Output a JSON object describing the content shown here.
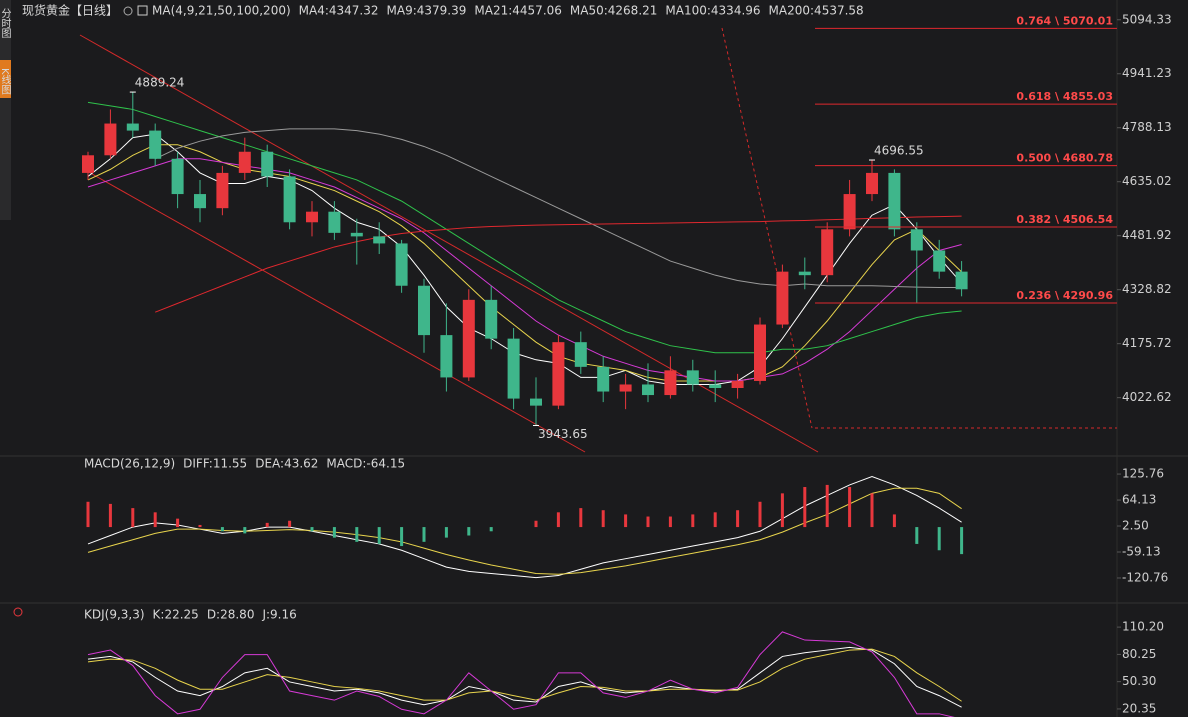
{
  "sidebar": [
    "分时图",
    "K线图"
  ],
  "chart_data": [
    {
      "type": "candlestick",
      "title": "现货黄金",
      "subtitle": "【日线】",
      "indicator": "MA(4,9,21,50,100,200)",
      "up_color": "#e8373d",
      "down_color": "#3fb68b",
      "open": [
        4660,
        4710,
        4800,
        4780,
        4700,
        4600,
        4560,
        4660,
        4720,
        4650,
        4520,
        4550,
        4490,
        4480,
        4460,
        4340,
        4200,
        4080,
        4300,
        4190,
        4020,
        4000,
        4180,
        4110,
        4040,
        4060,
        4030,
        4100,
        4060,
        4050,
        4070,
        4230,
        4380,
        4370,
        4500,
        4600,
        4660,
        4500,
        4440,
        4380
      ],
      "high": [
        4720,
        4840,
        4889.24,
        4800,
        4720,
        4640,
        4680,
        4760,
        4740,
        4670,
        4580,
        4580,
        4530,
        4520,
        4470,
        4360,
        4290,
        4330,
        4340,
        4220,
        4080,
        4200,
        4210,
        4140,
        4090,
        4120,
        4140,
        4130,
        4100,
        4090,
        4250,
        4400,
        4420,
        4520,
        4640,
        4696.55,
        4670,
        4520,
        4470,
        4410
      ],
      "low": [
        4640,
        4700,
        4760,
        4680,
        4560,
        4520,
        4540,
        4640,
        4620,
        4500,
        4480,
        4470,
        4400,
        4430,
        4320,
        4150,
        4040,
        4070,
        4160,
        3990,
        3943.65,
        3990,
        4090,
        4010,
        3990,
        4010,
        4020,
        4040,
        4010,
        4020,
        4060,
        4220,
        4330,
        4350,
        4480,
        4580,
        4480,
        4290,
        4360,
        4310
      ],
      "close": [
        4710,
        4800,
        4780,
        4700,
        4600,
        4560,
        4660,
        4720,
        4650,
        4520,
        4550,
        4490,
        4480,
        4460,
        4340,
        4200,
        4080,
        4300,
        4190,
        4020,
        4000,
        4180,
        4110,
        4040,
        4060,
        4030,
        4100,
        4060,
        4050,
        4070,
        4230,
        4380,
        4370,
        4500,
        4600,
        4660,
        4500,
        4440,
        4380,
        4330
      ],
      "series": [
        {
          "name": "MA4:4347.32",
          "color": "#ffffff",
          "values": [
            4650,
            4700,
            4760,
            4770,
            4720,
            4660,
            4630,
            4630,
            4650,
            4640,
            4610,
            4560,
            4520,
            4500,
            4450,
            4370,
            4280,
            4220,
            4190,
            4150,
            4130,
            4120,
            4080,
            4080,
            4100,
            4070,
            4060,
            4060,
            4060,
            4070,
            4110,
            4190,
            4280,
            4370,
            4460,
            4540,
            4570,
            4500,
            4420,
            4347.32
          ]
        },
        {
          "name": "MA9:4379.39",
          "color": "#e8d44d",
          "values": [
            4640,
            4670,
            4710,
            4740,
            4740,
            4720,
            4690,
            4670,
            4660,
            4650,
            4630,
            4610,
            4580,
            4550,
            4510,
            4460,
            4400,
            4340,
            4280,
            4230,
            4180,
            4140,
            4120,
            4110,
            4100,
            4080,
            4070,
            4070,
            4070,
            4070,
            4080,
            4110,
            4170,
            4240,
            4320,
            4400,
            4470,
            4500,
            4440,
            4379.39
          ]
        },
        {
          "name": "MA21:4457.06",
          "color": "#d63ad6",
          "values": [
            4620,
            4640,
            4660,
            4680,
            4700,
            4700,
            4690,
            4680,
            4670,
            4660,
            4640,
            4620,
            4590,
            4560,
            4530,
            4490,
            4440,
            4390,
            4340,
            4290,
            4240,
            4200,
            4170,
            4140,
            4120,
            4100,
            4090,
            4080,
            4070,
            4070,
            4080,
            4090,
            4120,
            4160,
            4210,
            4270,
            4330,
            4390,
            4440,
            4457.06
          ]
        },
        {
          "name": "MA50:4268.21",
          "color": "#2fc24b",
          "values": [
            4860,
            4850,
            4840,
            4820,
            4800,
            4780,
            4760,
            4740,
            4720,
            4700,
            4680,
            4660,
            4640,
            4610,
            4580,
            4540,
            4500,
            4460,
            4420,
            4380,
            4340,
            4300,
            4270,
            4240,
            4210,
            4190,
            4170,
            4160,
            4150,
            4150,
            4150,
            4160,
            4160,
            4170,
            4190,
            4210,
            4230,
            4250,
            4262,
            4268.21
          ]
        },
        {
          "name": "MA100:4334.96",
          "color": "#9a9a9a",
          "values": [
            null,
            null,
            null,
            4700,
            4730,
            4750,
            4765,
            4775,
            4780,
            4785,
            4785,
            4785,
            4780,
            4770,
            4755,
            4735,
            4710,
            4680,
            4650,
            4620,
            4590,
            4560,
            4530,
            4500,
            4470,
            4440,
            4410,
            4390,
            4370,
            4355,
            4345,
            4340,
            4345,
            4340,
            4340,
            4340,
            4338,
            4336,
            4335,
            4334.96
          ]
        },
        {
          "name": "MA200:4537.58",
          "color": "#e0282e",
          "values": [
            null,
            null,
            null,
            4265,
            4290,
            4315,
            4340,
            4365,
            4390,
            4410,
            4430,
            4450,
            4465,
            4478,
            4488,
            4495,
            4500,
            4505,
            4508,
            4510,
            4512,
            4513,
            4514,
            4515,
            4516,
            4517,
            4518,
            4519,
            4520,
            4521,
            4522,
            4524,
            4525,
            4527,
            4529,
            4531,
            4533,
            4535,
            4536,
            4537.58
          ]
        }
      ],
      "annotations": [
        {
          "text": "4889.24",
          "value": 4889.24,
          "index": 2
        },
        {
          "text": "3943.65",
          "value": 3943.65,
          "index": 20
        },
        {
          "text": "4696.55",
          "value": 4696.55,
          "index": 35
        }
      ],
      "fib_levels": [
        {
          "label": "0.764 \\ 5070.01",
          "value": 5070.01
        },
        {
          "label": "0.618 \\ 4855.03",
          "value": 4855.03
        },
        {
          "label": "0.500 \\ 4680.78",
          "value": 4680.78
        },
        {
          "label": "0.382 \\ 4506.54",
          "value": 4506.54
        },
        {
          "label": "0.236 \\ 4290.96",
          "value": 4290.96
        }
      ],
      "ylim": [
        3860,
        5122
      ],
      "yticks": [
        5094.33,
        4941.23,
        4788.13,
        4635.02,
        4481.92,
        4328.82,
        4175.72,
        4022.62
      ]
    },
    {
      "type": "macd",
      "title": "MACD(26,12,9)",
      "series": [
        {
          "name": "DIFF:11.55",
          "color": "#ffffff",
          "values": [
            -40,
            -20,
            0,
            10,
            5,
            -5,
            -15,
            -10,
            0,
            0,
            -10,
            -20,
            -30,
            -40,
            -55,
            -75,
            -95,
            -105,
            -110,
            -115,
            -120,
            -115,
            -100,
            -85,
            -75,
            -65,
            -55,
            -45,
            -35,
            -25,
            -10,
            20,
            50,
            75,
            100,
            120,
            100,
            75,
            45,
            11.55
          ]
        },
        {
          "name": "DEA:43.62",
          "color": "#e8d44d",
          "values": [
            -60,
            -45,
            -30,
            -15,
            -5,
            -5,
            -8,
            -10,
            -8,
            -6,
            -8,
            -12,
            -18,
            -25,
            -35,
            -50,
            -65,
            -78,
            -90,
            -100,
            -110,
            -112,
            -108,
            -100,
            -92,
            -82,
            -72,
            -62,
            -52,
            -42,
            -30,
            -12,
            10,
            30,
            55,
            80,
            92,
            92,
            80,
            43.62
          ]
        },
        {
          "name": "MACD:-64.15",
          "color": "#d63ad6",
          "bars": true,
          "values": [
            60,
            55,
            45,
            35,
            20,
            5,
            -10,
            -15,
            10,
            15,
            -10,
            -25,
            -35,
            -40,
            -45,
            -35,
            -25,
            -20,
            -10,
            0,
            15,
            35,
            45,
            40,
            30,
            25,
            25,
            30,
            35,
            40,
            60,
            80,
            95,
            100,
            95,
            80,
            30,
            -40,
            -55,
            -64.15
          ]
        }
      ],
      "up_color": "#e8373d",
      "down_color": "#3fb68b",
      "ylim": [
        -173,
        152
      ],
      "yticks": [
        125.76,
        64.13,
        {
          "value": 2.5,
          "label": "2.50"
        },
        -59.13,
        -120.76
      ]
    },
    {
      "type": "kdj",
      "title": "KDJ(9,3,3)",
      "series": [
        {
          "name": "K:22.25",
          "color": "#ffffff",
          "values": [
            75,
            78,
            72,
            55,
            40,
            35,
            45,
            60,
            65,
            50,
            45,
            40,
            42,
            38,
            30,
            25,
            30,
            45,
            40,
            30,
            28,
            45,
            50,
            42,
            38,
            40,
            45,
            42,
            40,
            42,
            60,
            78,
            82,
            85,
            88,
            85,
            70,
            45,
            35,
            22.25
          ]
        },
        {
          "name": "D:28.80",
          "color": "#e8d44d",
          "values": [
            72,
            75,
            74,
            65,
            52,
            42,
            42,
            50,
            58,
            55,
            50,
            45,
            43,
            40,
            35,
            30,
            30,
            38,
            40,
            35,
            30,
            38,
            45,
            44,
            40,
            40,
            42,
            42,
            41,
            41,
            50,
            65,
            75,
            80,
            85,
            86,
            78,
            60,
            45,
            28.8
          ]
        },
        {
          "name": "J:9.16",
          "color": "#d63ad6",
          "values": [
            80,
            85,
            68,
            35,
            15,
            20,
            55,
            80,
            80,
            40,
            35,
            30,
            40,
            34,
            20,
            15,
            30,
            60,
            40,
            20,
            25,
            60,
            60,
            38,
            33,
            40,
            52,
            42,
            38,
            44,
            80,
            105,
            96,
            95,
            94,
            83,
            55,
            15,
            15,
            9.16
          ]
        }
      ],
      "ylim": [
        11.5,
        126.8
      ],
      "yticks": [
        {
          "value": 110.2,
          "label": "110.20"
        },
        80.25,
        {
          "value": 50.3,
          "label": "50.30"
        },
        20.35
      ]
    }
  ]
}
